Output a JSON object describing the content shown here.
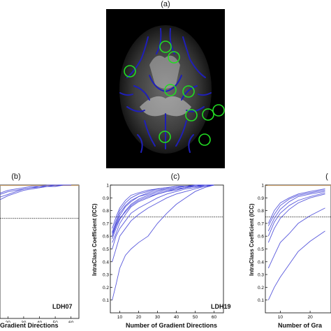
{
  "panels": {
    "a": {
      "label": "(a)"
    },
    "b": {
      "label": "(b)",
      "subject": "LDH07",
      "xlabel": "Gradient Directions",
      "xticks": [
        "20",
        "30",
        "40",
        "50",
        "60"
      ]
    },
    "c": {
      "label": "(c)",
      "subject": "LDH19",
      "xlabel": "Number of Gradient Directions",
      "ylabel": "IntraClass Coefficient (ICC)",
      "xticks": [
        "10",
        "20",
        "30",
        "40",
        "50",
        "60"
      ],
      "yticks": [
        "0.1",
        "0.2",
        "0.3",
        "0.4",
        "0.5",
        "0.6",
        "0.7",
        "0.8",
        "0.9",
        "1"
      ]
    },
    "d": {
      "label": "(",
      "xlabel": "Number of Gra",
      "ylabel": "IntraClass Coefficient (ICC)",
      "xticks": [
        "10",
        "20"
      ],
      "yticks": [
        "0.1",
        "0.2",
        "0.3",
        "0.4",
        "0.5",
        "0.6",
        "0.7",
        "0.8",
        "0.9",
        "1"
      ]
    }
  },
  "colors": {
    "curve": "#3b3bd6",
    "threshold": "#000000",
    "tract": "#1f1fb8",
    "roi": "#22dd22",
    "top_line": "#d4a26a"
  },
  "chart_data": [
    {
      "type": "line",
      "panel": "c",
      "xlabel": "Number of Gradient Directions",
      "ylabel": "IntraClass Coefficient (ICC)",
      "subject": "LDH19",
      "xlim": [
        5,
        65
      ],
      "ylim": [
        0,
        1
      ],
      "threshold": 0.75,
      "x": [
        6,
        8,
        10,
        13,
        16,
        20,
        25,
        30,
        35,
        40,
        45,
        50,
        55,
        60
      ],
      "series": [
        {
          "values": [
            0.6,
            0.7,
            0.78,
            0.84,
            0.88,
            0.91,
            0.94,
            0.96,
            0.97,
            0.98,
            0.99,
            0.99,
            1.0,
            1.0
          ]
        },
        {
          "values": [
            0.63,
            0.72,
            0.8,
            0.86,
            0.9,
            0.93,
            0.95,
            0.97,
            0.98,
            0.99,
            0.99,
            1.0,
            1.0,
            1.0
          ]
        },
        {
          "values": [
            0.58,
            0.66,
            0.73,
            0.8,
            0.85,
            0.89,
            0.92,
            0.94,
            0.96,
            0.97,
            0.98,
            0.99,
            1.0,
            1.0
          ]
        },
        {
          "values": [
            0.66,
            0.75,
            0.82,
            0.88,
            0.92,
            0.94,
            0.96,
            0.97,
            0.98,
            0.99,
            0.99,
            1.0,
            1.0,
            1.0
          ]
        },
        {
          "values": [
            0.62,
            0.69,
            0.76,
            0.83,
            0.87,
            0.91,
            0.93,
            0.95,
            0.97,
            0.98,
            0.99,
            0.99,
            1.0,
            1.0
          ]
        },
        {
          "values": [
            0.55,
            0.62,
            0.7,
            0.77,
            0.83,
            0.87,
            0.9,
            0.93,
            0.95,
            0.96,
            0.98,
            0.99,
            0.99,
            1.0
          ]
        },
        {
          "values": [
            0.6,
            0.68,
            0.74,
            0.79,
            0.84,
            0.88,
            0.91,
            0.93,
            0.95,
            0.97,
            0.98,
            0.99,
            1.0,
            1.0
          ]
        },
        {
          "values": [
            0.5,
            0.6,
            0.66,
            0.72,
            0.78,
            0.82,
            0.86,
            0.9,
            0.93,
            0.95,
            0.97,
            0.98,
            0.99,
            1.0
          ]
        },
        {
          "values": [
            0.4,
            0.5,
            0.6,
            0.66,
            0.72,
            0.77,
            0.82,
            0.86,
            0.9,
            0.93,
            0.95,
            0.97,
            0.99,
            1.0
          ]
        },
        {
          "values": [
            0.1,
            0.22,
            0.35,
            0.45,
            0.5,
            0.55,
            0.6,
            0.7,
            0.78,
            0.85,
            0.9,
            0.95,
            0.98,
            1.0
          ]
        }
      ]
    },
    {
      "type": "line",
      "panel": "d",
      "xlabel": "Number of Gra",
      "ylabel": "IntraClass Coefficient (ICC)",
      "xlim": [
        5,
        27
      ],
      "ylim": [
        0,
        1
      ],
      "threshold": 0.75,
      "x": [
        6,
        8,
        10,
        13,
        16,
        20,
        25
      ],
      "series": [
        {
          "values": [
            0.7,
            0.8,
            0.86,
            0.9,
            0.93,
            0.95,
            0.97
          ]
        },
        {
          "values": [
            0.68,
            0.77,
            0.84,
            0.89,
            0.92,
            0.94,
            0.96
          ]
        },
        {
          "values": [
            0.64,
            0.74,
            0.81,
            0.87,
            0.91,
            0.93,
            0.95
          ]
        },
        {
          "values": [
            0.6,
            0.71,
            0.78,
            0.84,
            0.88,
            0.91,
            0.94
          ]
        },
        {
          "values": [
            0.55,
            0.66,
            0.74,
            0.81,
            0.86,
            0.9,
            0.93
          ]
        },
        {
          "values": [
            0.35,
            0.45,
            0.55,
            0.62,
            0.7,
            0.76,
            0.82
          ]
        },
        {
          "values": [
            0.1,
            0.2,
            0.28,
            0.38,
            0.48,
            0.56,
            0.64
          ]
        }
      ]
    },
    {
      "type": "line",
      "panel": "b",
      "xlabel": "Gradient Directions",
      "subject": "LDH07",
      "xlim": [
        15,
        65
      ],
      "ylim": [
        0,
        1
      ],
      "threshold": 0.75,
      "x": [
        15,
        20,
        25,
        30,
        35,
        40,
        45,
        50,
        55,
        60
      ],
      "series": [
        {
          "values": [
            0.93,
            0.95,
            0.96,
            0.97,
            0.98,
            0.99,
            0.99,
            1.0,
            1.0,
            1.0
          ]
        },
        {
          "values": [
            0.91,
            0.93,
            0.95,
            0.97,
            0.98,
            0.98,
            0.99,
            0.99,
            1.0,
            1.0
          ]
        },
        {
          "values": [
            0.89,
            0.92,
            0.94,
            0.96,
            0.97,
            0.98,
            0.99,
            0.99,
            1.0,
            1.0
          ]
        },
        {
          "values": [
            0.94,
            0.96,
            0.97,
            0.98,
            0.99,
            0.99,
            1.0,
            1.0,
            1.0,
            1.0
          ]
        }
      ]
    }
  ]
}
